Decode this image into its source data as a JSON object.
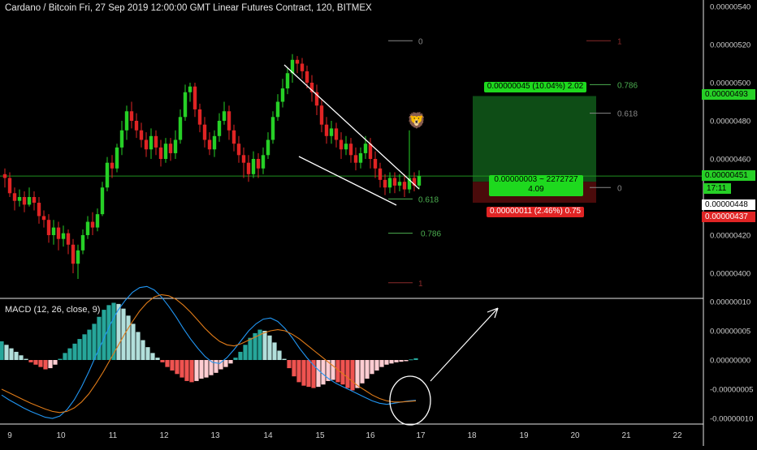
{
  "header": {
    "title": "Cardano / Bitcoin Fri, 27 Sep 2019 12:00:00 GMT Linear Futures Contract, 120, BITMEX",
    "macd_label": "MACD (12, 26, close, 9)"
  },
  "colors": {
    "background": "#000000",
    "up": "#26d026",
    "down": "#e02424",
    "macd_pos_strong": "#26a69a",
    "macd_pos_weak": "#b2dfdb",
    "macd_neg_strong": "#ef5350",
    "macd_neg_weak": "#ffcdd2",
    "macd_line": "#2196f3",
    "signal_line": "#e07b18",
    "fib_green": "#4caf50",
    "fib_grey": "#888888",
    "target_zone": "#0e4d16",
    "stop_zone": "#4a0b0b",
    "annotation": "#ffffff"
  },
  "axis": {
    "price_labels": [
      "0.00000540",
      "0.00000520",
      "0.00000500",
      "0.00000480",
      "0.00000460",
      "0.00000420",
      "0.00000400"
    ],
    "macd_labels": [
      "0.00000010",
      "0.00000005",
      "0.00000000",
      "-0.00000005",
      "-0.00000010"
    ],
    "date_labels": [
      "9",
      "10",
      "11",
      "12",
      "13",
      "14",
      "15",
      "16",
      "17",
      "18",
      "19",
      "20",
      "21",
      "22"
    ]
  },
  "price_tags": {
    "target": "0.00000493",
    "current": "0.00000451",
    "countdown": "17:11",
    "entry": "0.00000448",
    "stop": "0.00000437"
  },
  "fib_labels": {
    "upper_0": "0",
    "upper_618": "0.618",
    "upper_786": "0.786",
    "upper_1": "1",
    "lower_0": "0",
    "lower_618": "0.618",
    "lower_786": "0.786",
    "lower_1": "1"
  },
  "position_tool": {
    "target_text": "0.00000045 (10.04%) 2.02",
    "mid_line1": "0.00000003 ~ 2272727",
    "mid_line2": "4.09",
    "stop_text": "0.00000011 (2.46%) 0.75"
  },
  "emoji": "🦁",
  "chart_data": [
    {
      "type": "candlestick",
      "title": "Cardano / Bitcoin Fri, 27 Sep 2019 12:00:00 GMT Linear Futures Contract, 120, BITMEX",
      "x_ticks": [
        "9",
        "10",
        "11",
        "12",
        "13",
        "14",
        "15",
        "16",
        "17",
        "18",
        "19",
        "20",
        "21",
        "22"
      ],
      "ylim": [
        3.9e-06,
        5.4e-06
      ],
      "series": [
        {
          "name": "price",
          "ohlc": [
            [
              4.52,
              4.5,
              4.55,
              4.45
            ],
            [
              4.5,
              4.42,
              4.53,
              4.4
            ],
            [
              4.42,
              4.38,
              4.45,
              4.33
            ],
            [
              4.38,
              4.4,
              4.44,
              4.35
            ],
            [
              4.4,
              4.36,
              4.43,
              4.32
            ],
            [
              4.36,
              4.4,
              4.45,
              4.35
            ],
            [
              4.4,
              4.37,
              4.43,
              4.33
            ],
            [
              4.37,
              4.3,
              4.4,
              4.26
            ],
            [
              4.3,
              4.28,
              4.33,
              4.24
            ],
            [
              4.28,
              4.2,
              4.31,
              4.16
            ],
            [
              4.2,
              4.24,
              4.28,
              4.15
            ],
            [
              4.24,
              4.18,
              4.27,
              4.12
            ],
            [
              4.18,
              4.21,
              4.25,
              4.14
            ],
            [
              4.21,
              4.15,
              4.23,
              4.1
            ],
            [
              4.15,
              4.05,
              4.18,
              4.0
            ],
            [
              4.05,
              4.12,
              4.15,
              3.97
            ],
            [
              4.12,
              4.2,
              4.23,
              4.1
            ],
            [
              4.2,
              4.27,
              4.3,
              4.18
            ],
            [
              4.27,
              4.24,
              4.32,
              4.2
            ],
            [
              4.24,
              4.31,
              4.34,
              4.22
            ],
            [
              4.31,
              4.45,
              4.48,
              4.3
            ],
            [
              4.45,
              4.58,
              4.61,
              4.43
            ],
            [
              4.58,
              4.55,
              4.62,
              4.5
            ],
            [
              4.55,
              4.66,
              4.68,
              4.53
            ],
            [
              4.66,
              4.75,
              4.8,
              4.62
            ],
            [
              4.75,
              4.85,
              4.88,
              4.7
            ],
            [
              4.85,
              4.8,
              4.9,
              4.76
            ],
            [
              4.8,
              4.75,
              4.84,
              4.71
            ],
            [
              4.75,
              4.7,
              4.79,
              4.66
            ],
            [
              4.7,
              4.65,
              4.74,
              4.61
            ],
            [
              4.65,
              4.72,
              4.76,
              4.6
            ],
            [
              4.72,
              4.66,
              4.75,
              4.62
            ],
            [
              4.66,
              4.6,
              4.7,
              4.56
            ],
            [
              4.6,
              4.68,
              4.71,
              4.58
            ],
            [
              4.68,
              4.63,
              4.71,
              4.59
            ],
            [
              4.63,
              4.7,
              4.75,
              4.6
            ],
            [
              4.7,
              4.82,
              4.86,
              4.68
            ],
            [
              4.82,
              4.95,
              4.99,
              4.8
            ],
            [
              4.95,
              4.98,
              5.0,
              4.9
            ],
            [
              4.98,
              4.86,
              5.0,
              4.82
            ],
            [
              4.86,
              4.78,
              4.89,
              4.74
            ],
            [
              4.78,
              4.7,
              4.82,
              4.66
            ],
            [
              4.7,
              4.65,
              4.74,
              4.62
            ],
            [
              4.65,
              4.72,
              4.75,
              4.61
            ],
            [
              4.72,
              4.8,
              4.84,
              4.69
            ],
            [
              4.8,
              4.85,
              4.9,
              4.78
            ],
            [
              4.85,
              4.75,
              4.88,
              4.7
            ],
            [
              4.75,
              4.68,
              4.78,
              4.64
            ],
            [
              4.68,
              4.62,
              4.72,
              4.58
            ],
            [
              4.62,
              4.58,
              4.66,
              4.5
            ],
            [
              4.58,
              4.52,
              4.62,
              4.48
            ],
            [
              4.52,
              4.6,
              4.64,
              4.5
            ],
            [
              4.6,
              4.55,
              4.63,
              4.5
            ],
            [
              4.55,
              4.62,
              4.66,
              4.52
            ],
            [
              4.62,
              4.7,
              4.74,
              4.6
            ],
            [
              4.7,
              4.82,
              4.85,
              4.68
            ],
            [
              4.82,
              4.9,
              4.94,
              4.8
            ],
            [
              4.9,
              4.97,
              5.02,
              4.87
            ],
            [
              4.97,
              5.05,
              5.08,
              4.94
            ],
            [
              5.05,
              5.12,
              5.15,
              5.0
            ],
            [
              5.12,
              5.1,
              5.14,
              5.05
            ],
            [
              5.1,
              5.06,
              5.13,
              5.02
            ],
            [
              5.06,
              5.0,
              5.09,
              4.97
            ],
            [
              5.0,
              4.95,
              5.04,
              4.9
            ],
            [
              4.95,
              4.88,
              4.99,
              4.83
            ],
            [
              4.88,
              4.78,
              4.91,
              4.74
            ],
            [
              4.78,
              4.72,
              4.82,
              4.68
            ],
            [
              4.72,
              4.76,
              4.8,
              4.68
            ],
            [
              4.76,
              4.7,
              4.79,
              4.66
            ],
            [
              4.7,
              4.65,
              4.74,
              4.6
            ],
            [
              4.65,
              4.68,
              4.72,
              4.62
            ],
            [
              4.68,
              4.62,
              4.71,
              4.58
            ],
            [
              4.62,
              4.58,
              4.66,
              4.54
            ],
            [
              4.58,
              4.63,
              4.66,
              4.55
            ],
            [
              4.63,
              4.68,
              4.72,
              4.6
            ],
            [
              4.68,
              4.6,
              4.71,
              4.55
            ],
            [
              4.6,
              4.55,
              4.64,
              4.5
            ],
            [
              4.55,
              4.49,
              4.58,
              4.45
            ],
            [
              4.49,
              4.45,
              4.52,
              4.41
            ],
            [
              4.45,
              4.5,
              4.53,
              4.42
            ],
            [
              4.5,
              4.46,
              4.53,
              4.42
            ],
            [
              4.46,
              4.48,
              4.52,
              4.43
            ],
            [
              4.48,
              4.44,
              4.52,
              4.4
            ],
            [
              4.44,
              4.5,
              4.75,
              4.42
            ],
            [
              4.5,
              4.46,
              4.53,
              4.43
            ],
            [
              4.46,
              4.51,
              4.54,
              4.44
            ]
          ]
        }
      ]
    },
    {
      "type": "bar",
      "title": "MACD (12, 26, close, 9)",
      "ylim": [
        -1e-07,
        1e-07
      ],
      "series": [
        {
          "name": "histogram",
          "values": [
            3.2,
            2.6,
            2.0,
            1.4,
            0.8,
            0.2,
            -0.4,
            -0.8,
            -1.2,
            -1.6,
            -1.4,
            -0.8,
            0.2,
            1.2,
            2.0,
            2.8,
            3.6,
            4.4,
            5.2,
            6.2,
            7.4,
            8.6,
            9.4,
            9.8,
            9.6,
            8.8,
            7.6,
            6.2,
            4.8,
            3.4,
            2.2,
            1.2,
            0.4,
            -0.4,
            -1.2,
            -1.8,
            -2.4,
            -3.0,
            -3.6,
            -3.8,
            -3.6,
            -3.2,
            -3.0,
            -2.6,
            -2.2,
            -1.6,
            -1.2,
            -0.6,
            0.4,
            1.4,
            2.6,
            3.8,
            4.6,
            5.2,
            5.0,
            4.2,
            3.0,
            1.6,
            0.2,
            -1.4,
            -2.8,
            -3.8,
            -4.4,
            -4.6,
            -4.8,
            -4.6,
            -4.2,
            -3.6,
            -3.4,
            -3.8,
            -4.2,
            -4.8,
            -5.2,
            -4.8,
            -4.0,
            -3.2,
            -2.4,
            -1.8,
            -1.2,
            -0.8,
            -0.6,
            -0.4,
            -0.3,
            -0.2,
            0.1,
            0.3
          ]
        },
        {
          "name": "macd",
          "values": [
            -6.0,
            -6.8,
            -7.5,
            -8.2,
            -8.8,
            -9.3,
            -9.8,
            -10.0,
            -9.6,
            -8.5,
            -6.8,
            -4.6,
            -2.0,
            0.8,
            3.5,
            6.2,
            8.5,
            10.2,
            11.6,
            12.4,
            12.6,
            12.0,
            10.8,
            9.2,
            7.4,
            5.4,
            3.6,
            2.0,
            0.6,
            -0.4,
            -0.6,
            0.4,
            1.8,
            3.4,
            5.0,
            6.2,
            7.0,
            7.2,
            6.6,
            5.4,
            3.8,
            2.0,
            0.4,
            -1.0,
            -2.2,
            -3.2,
            -4.0,
            -4.6,
            -5.2,
            -5.8,
            -6.4,
            -7.0,
            -7.4,
            -7.6,
            -7.4,
            -7.2,
            -7.0,
            -6.9
          ],
          "line_style": "series line"
        },
        {
          "name": "signal",
          "values": [
            -5.0,
            -5.6,
            -6.2,
            -6.8,
            -7.4,
            -7.9,
            -8.4,
            -8.8,
            -9.0,
            -8.8,
            -8.2,
            -7.2,
            -5.8,
            -4.0,
            -2.0,
            0.2,
            2.4,
            4.6,
            6.6,
            8.4,
            9.8,
            10.8,
            11.2,
            11.0,
            10.4,
            9.4,
            8.2,
            6.8,
            5.4,
            4.2,
            3.2,
            2.6,
            2.4,
            2.8,
            3.4,
            4.0,
            4.6,
            5.0,
            5.2,
            5.0,
            4.4,
            3.6,
            2.6,
            1.6,
            0.6,
            -0.4,
            -1.4,
            -2.4,
            -3.4,
            -4.4,
            -5.2,
            -6.0,
            -6.6,
            -7.0,
            -7.2,
            -7.2,
            -7.1,
            -7.0
          ]
        }
      ]
    }
  ]
}
